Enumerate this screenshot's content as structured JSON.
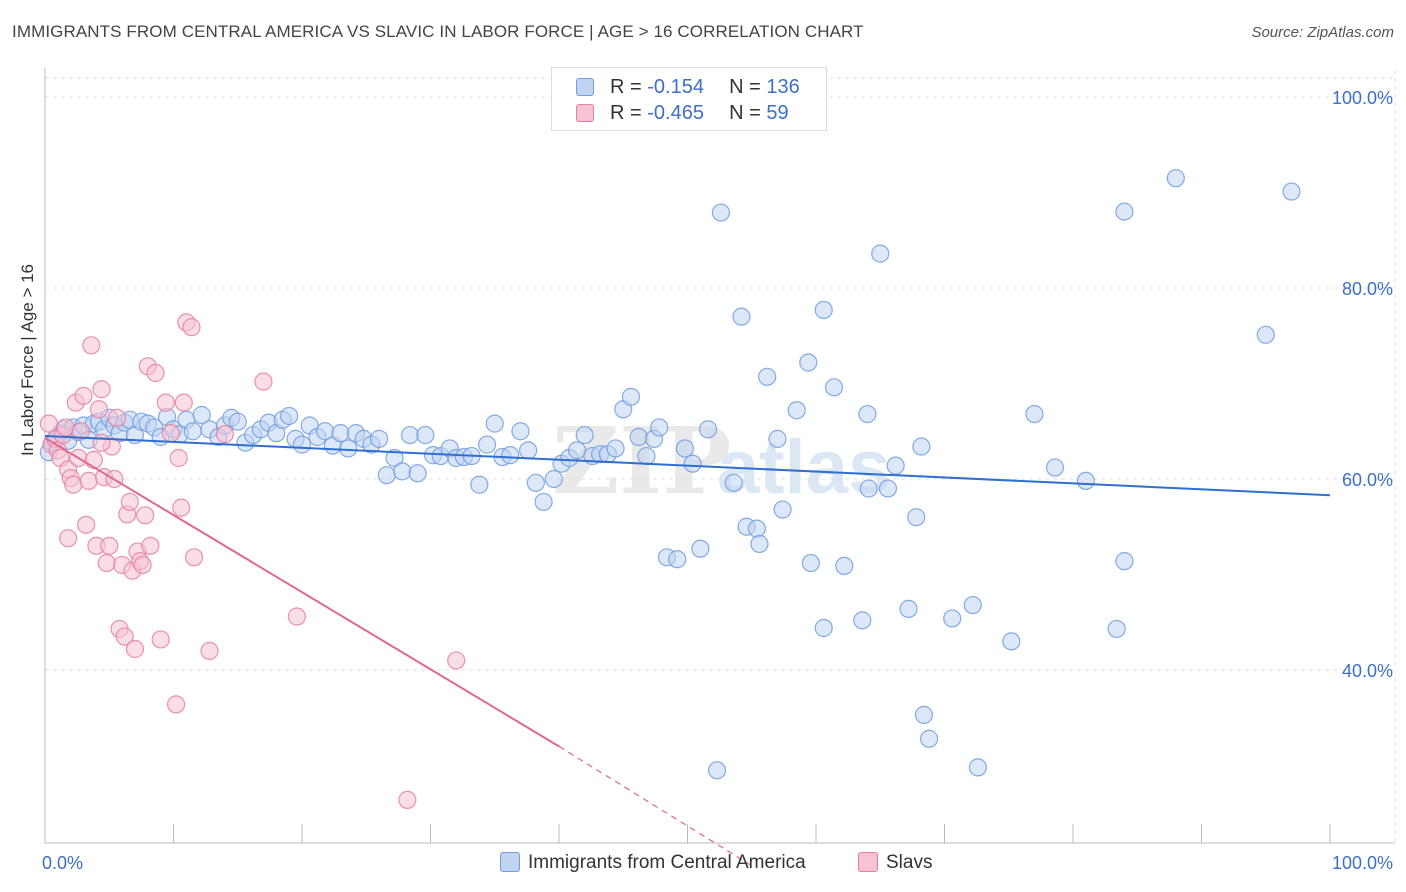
{
  "title": "IMMIGRANTS FROM CENTRAL AMERICA VS SLAVIC IN LABOR FORCE | AGE > 16 CORRELATION CHART",
  "source": "Source: ZipAtlas.com",
  "watermark": {
    "zip": "ZIP",
    "atlas": "atlas"
  },
  "legend": {
    "r_label": "R =",
    "n_label": "N =",
    "rows": [
      {
        "r": "-0.154",
        "n": "136"
      },
      {
        "r": "-0.465",
        "n": "59"
      }
    ]
  },
  "chart_data": {
    "type": "scatter",
    "title": "IMMIGRANTS FROM CENTRAL AMERICA VS SLAVIC IN LABOR FORCE | AGE > 16 CORRELATION CHART",
    "xlabel": "",
    "ylabel": "In Labor Force | Age > 16",
    "xlim": [
      0,
      100
    ],
    "ylim": [
      18,
      103
    ],
    "x_tick_labels": [
      "0.0%",
      "100.0%"
    ],
    "y_tick_labels": [
      "100.0%",
      "80.0%",
      "60.0%",
      "40.0%"
    ],
    "y_ticks": [
      100,
      80,
      60,
      40
    ],
    "grid": true,
    "legend_position": "top-center",
    "series": [
      {
        "name": "Immigrants from Central America",
        "color": "#6f9ee0",
        "fill": "#c0d4f2",
        "r": "-0.154",
        "n": "136",
        "trend": {
          "x": [
            0,
            100
          ],
          "y": [
            64.5,
            58.3
          ],
          "style": "solid"
        },
        "points": [
          [
            0.3,
            62.8
          ],
          [
            0.6,
            63.8
          ],
          [
            0.9,
            64.2
          ],
          [
            1.2,
            64.8
          ],
          [
            1.5,
            65.2
          ],
          [
            1.8,
            64.0
          ],
          [
            2.2,
            65.4
          ],
          [
            2.6,
            64.9
          ],
          [
            3.0,
            65.6
          ],
          [
            3.4,
            64.1
          ],
          [
            3.8,
            65.8
          ],
          [
            4.2,
            66.0
          ],
          [
            4.6,
            65.2
          ],
          [
            5.0,
            66.4
          ],
          [
            5.4,
            65.6
          ],
          [
            5.8,
            64.8
          ],
          [
            6.2,
            65.9
          ],
          [
            6.6,
            66.2
          ],
          [
            7.0,
            64.6
          ],
          [
            7.5,
            66.0
          ],
          [
            8.0,
            65.8
          ],
          [
            8.5,
            65.4
          ],
          [
            9.0,
            64.4
          ],
          [
            9.5,
            66.5
          ],
          [
            10.0,
            65.2
          ],
          [
            10.5,
            64.7
          ],
          [
            11.0,
            66.2
          ],
          [
            11.5,
            65.0
          ],
          [
            12.2,
            66.7
          ],
          [
            12.8,
            65.2
          ],
          [
            13.5,
            64.4
          ],
          [
            14.0,
            65.6
          ],
          [
            14.5,
            66.4
          ],
          [
            15.0,
            66.0
          ],
          [
            15.6,
            63.8
          ],
          [
            16.2,
            64.6
          ],
          [
            16.8,
            65.2
          ],
          [
            17.4,
            65.9
          ],
          [
            18.0,
            64.8
          ],
          [
            18.5,
            66.2
          ],
          [
            19.0,
            66.6
          ],
          [
            19.5,
            64.2
          ],
          [
            20.0,
            63.6
          ],
          [
            20.6,
            65.6
          ],
          [
            21.2,
            64.4
          ],
          [
            21.8,
            65.0
          ],
          [
            22.4,
            63.5
          ],
          [
            23.0,
            64.8
          ],
          [
            23.6,
            63.2
          ],
          [
            24.2,
            64.8
          ],
          [
            24.8,
            64.2
          ],
          [
            25.4,
            63.6
          ],
          [
            26.0,
            64.2
          ],
          [
            26.6,
            60.4
          ],
          [
            27.2,
            62.2
          ],
          [
            27.8,
            60.8
          ],
          [
            28.4,
            64.6
          ],
          [
            29.0,
            60.6
          ],
          [
            29.6,
            64.6
          ],
          [
            30.2,
            62.5
          ],
          [
            30.8,
            62.4
          ],
          [
            31.5,
            63.2
          ],
          [
            32.0,
            62.2
          ],
          [
            32.6,
            62.3
          ],
          [
            33.2,
            62.4
          ],
          [
            33.8,
            59.4
          ],
          [
            34.4,
            63.6
          ],
          [
            35.0,
            65.8
          ],
          [
            35.6,
            62.3
          ],
          [
            36.2,
            62.5
          ],
          [
            37.0,
            65.0
          ],
          [
            37.6,
            63.0
          ],
          [
            38.2,
            59.6
          ],
          [
            38.8,
            57.6
          ],
          [
            39.6,
            60.0
          ],
          [
            40.2,
            61.6
          ],
          [
            40.8,
            62.2
          ],
          [
            41.4,
            63.0
          ],
          [
            42.0,
            64.6
          ],
          [
            42.6,
            62.4
          ],
          [
            43.2,
            62.6
          ],
          [
            43.8,
            62.6
          ],
          [
            44.4,
            63.2
          ],
          [
            45.0,
            67.3
          ],
          [
            45.6,
            68.6
          ],
          [
            46.2,
            64.4
          ],
          [
            46.8,
            62.4
          ],
          [
            47.4,
            64.2
          ],
          [
            47.8,
            65.4
          ],
          [
            48.4,
            51.8
          ],
          [
            49.2,
            51.6
          ],
          [
            49.8,
            63.2
          ],
          [
            50.4,
            61.6
          ],
          [
            51.0,
            52.7
          ],
          [
            51.6,
            65.2
          ],
          [
            52.3,
            29.5
          ],
          [
            52.6,
            87.9
          ],
          [
            53.6,
            59.6
          ],
          [
            54.2,
            77.0
          ],
          [
            54.6,
            55.0
          ],
          [
            55.4,
            54.8
          ],
          [
            55.6,
            53.2
          ],
          [
            56.2,
            70.7
          ],
          [
            57.0,
            64.2
          ],
          [
            57.4,
            56.8
          ],
          [
            58.5,
            67.2
          ],
          [
            59.4,
            72.2
          ],
          [
            59.6,
            51.2
          ],
          [
            60.6,
            44.4
          ],
          [
            60.6,
            77.7
          ],
          [
            61.4,
            69.6
          ],
          [
            62.2,
            50.9
          ],
          [
            63.6,
            45.2
          ],
          [
            64.0,
            66.8
          ],
          [
            64.1,
            59.0
          ],
          [
            65.0,
            83.6
          ],
          [
            65.6,
            59.0
          ],
          [
            66.2,
            61.4
          ],
          [
            67.2,
            46.4
          ],
          [
            67.8,
            56.0
          ],
          [
            68.2,
            63.4
          ],
          [
            68.4,
            35.3
          ],
          [
            68.8,
            32.8
          ],
          [
            70.6,
            45.4
          ],
          [
            72.2,
            46.8
          ],
          [
            72.6,
            29.8
          ],
          [
            75.2,
            43.0
          ],
          [
            77.0,
            66.8
          ],
          [
            78.6,
            61.2
          ],
          [
            81.0,
            59.8
          ],
          [
            83.4,
            44.3
          ],
          [
            84.0,
            51.4
          ],
          [
            84.0,
            88.0
          ],
          [
            88.0,
            91.5
          ],
          [
            95.0,
            75.1
          ],
          [
            97.0,
            90.1
          ]
        ]
      },
      {
        "name": "Slavs",
        "color": "#e87fa0",
        "fill": "#f6c3d3",
        "r": "-0.465",
        "n": "59",
        "trend": {
          "x": [
            0,
            40
          ],
          "y": [
            64.3,
            32.0
          ],
          "style": "solid",
          "dashed_extension_to": [
            55,
            19.5
          ]
        },
        "points": [
          [
            0.3,
            65.8
          ],
          [
            0.5,
            63.6
          ],
          [
            0.8,
            64.2
          ],
          [
            1.0,
            63.0
          ],
          [
            1.2,
            62.2
          ],
          [
            1.4,
            64.6
          ],
          [
            1.6,
            65.4
          ],
          [
            1.8,
            61.0
          ],
          [
            2.0,
            60.1
          ],
          [
            2.2,
            59.4
          ],
          [
            2.4,
            68.0
          ],
          [
            2.6,
            62.2
          ],
          [
            2.8,
            65.0
          ],
          [
            3.0,
            68.7
          ],
          [
            3.2,
            55.2
          ],
          [
            3.4,
            59.8
          ],
          [
            3.6,
            74.0
          ],
          [
            3.8,
            62.0
          ],
          [
            4.0,
            53.0
          ],
          [
            4.2,
            67.3
          ],
          [
            4.4,
            69.4
          ],
          [
            4.6,
            60.2
          ],
          [
            4.8,
            51.2
          ],
          [
            5.0,
            53.0
          ],
          [
            5.2,
            63.4
          ],
          [
            5.4,
            60.0
          ],
          [
            5.6,
            66.4
          ],
          [
            5.8,
            44.3
          ],
          [
            6.0,
            51.0
          ],
          [
            6.2,
            43.5
          ],
          [
            6.4,
            56.3
          ],
          [
            6.6,
            57.6
          ],
          [
            6.8,
            50.4
          ],
          [
            7.0,
            42.2
          ],
          [
            7.2,
            52.4
          ],
          [
            7.4,
            51.4
          ],
          [
            7.6,
            51.0
          ],
          [
            7.8,
            56.2
          ],
          [
            8.0,
            71.8
          ],
          [
            8.2,
            53.0
          ],
          [
            8.6,
            71.1
          ],
          [
            9.0,
            43.2
          ],
          [
            9.4,
            68.0
          ],
          [
            9.8,
            64.8
          ],
          [
            10.2,
            36.4
          ],
          [
            10.4,
            62.2
          ],
          [
            10.6,
            57.0
          ],
          [
            10.8,
            68.0
          ],
          [
            11.0,
            76.4
          ],
          [
            11.4,
            75.9
          ],
          [
            11.6,
            51.8
          ],
          [
            12.8,
            42.0
          ],
          [
            14.0,
            64.7
          ],
          [
            17.0,
            70.2
          ],
          [
            19.6,
            45.6
          ],
          [
            28.2,
            26.4
          ],
          [
            32.0,
            41.0
          ],
          [
            1.8,
            53.8
          ],
          [
            4.4,
            63.8
          ]
        ]
      }
    ]
  },
  "bottom_legend": [
    "Immigrants from Central America",
    "Slavs"
  ]
}
